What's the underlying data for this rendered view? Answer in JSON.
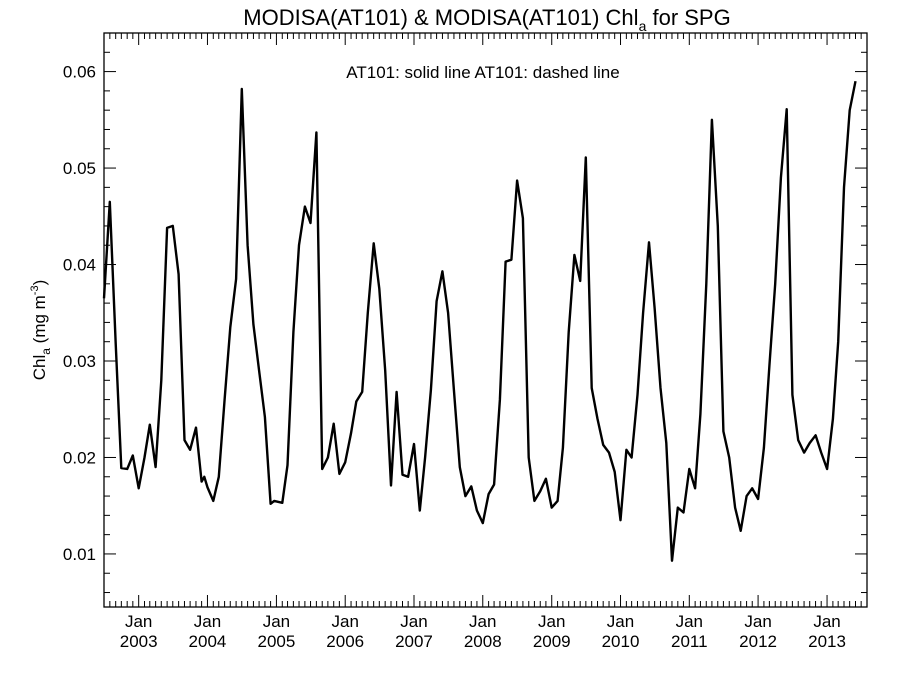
{
  "chart_data": {
    "type": "line",
    "title": "MODISA(AT101) & MODISA(AT101)  Chl",
    "title_sub": "a",
    "title_suffix": " for SPG",
    "ylabel": "Chl",
    "ylabel_sub": "a",
    "ylabel_units_pre": " (mg m",
    "ylabel_units_sup": "-3",
    "ylabel_units_post": ")",
    "annotation": "AT101: solid line   AT101: dashed line",
    "xlim": [
      "2002-07-01",
      "2013-08-01"
    ],
    "ylim": [
      0.0045,
      0.064
    ],
    "yticks": [
      0.01,
      0.02,
      0.03,
      0.04,
      0.05,
      0.06
    ],
    "ytick_labels": [
      "0.01",
      "0.02",
      "0.03",
      "0.04",
      "0.05",
      "0.06"
    ],
    "xticks": [
      "2003-01-01",
      "2004-01-01",
      "2005-01-01",
      "2006-01-01",
      "2007-01-01",
      "2008-01-01",
      "2009-01-01",
      "2010-01-01",
      "2011-01-01",
      "2012-01-01",
      "2013-01-01"
    ],
    "xtick_month_label": "Jan",
    "xtick_year_labels": [
      "2003",
      "2004",
      "2005",
      "2006",
      "2007",
      "2008",
      "2009",
      "2010",
      "2011",
      "2012",
      "2013"
    ],
    "grid": false,
    "series": [
      {
        "style": "solid",
        "color": "#000000",
        "points": [
          [
            "2002-07-01",
            0.0365
          ],
          [
            "2002-08-01",
            0.0465
          ],
          [
            "2002-09-01",
            0.0318
          ],
          [
            "2002-10-01",
            0.0189
          ],
          [
            "2002-11-01",
            0.0188
          ],
          [
            "2002-12-01",
            0.0202
          ],
          [
            "2003-01-01",
            0.0168
          ],
          [
            "2003-02-01",
            0.02
          ],
          [
            "2003-03-01",
            0.0234
          ],
          [
            "2003-04-01",
            0.019
          ],
          [
            "2003-05-01",
            0.028
          ],
          [
            "2003-06-01",
            0.0438
          ],
          [
            "2003-07-01",
            0.044
          ],
          [
            "2003-08-01",
            0.039
          ],
          [
            "2003-09-01",
            0.0218
          ],
          [
            "2003-10-01",
            0.0208
          ],
          [
            "2003-11-01",
            0.0231
          ],
          [
            "2003-12-01",
            0.0175
          ],
          [
            "2003-12-15",
            0.018
          ],
          [
            "2004-01-01",
            0.0169
          ],
          [
            "2004-02-01",
            0.0155
          ],
          [
            "2004-03-01",
            0.018
          ],
          [
            "2004-04-01",
            0.026
          ],
          [
            "2004-05-01",
            0.0335
          ],
          [
            "2004-06-01",
            0.0385
          ],
          [
            "2004-07-01",
            0.0582
          ],
          [
            "2004-08-01",
            0.042
          ],
          [
            "2004-09-01",
            0.0338
          ],
          [
            "2004-10-01",
            0.029
          ],
          [
            "2004-11-01",
            0.0242
          ],
          [
            "2004-12-01",
            0.0152
          ],
          [
            "2004-12-20",
            0.0155
          ],
          [
            "2005-02-01",
            0.0153
          ],
          [
            "2005-03-01",
            0.0192
          ],
          [
            "2005-04-01",
            0.033
          ],
          [
            "2005-05-01",
            0.042
          ],
          [
            "2005-06-01",
            0.046
          ],
          [
            "2005-07-01",
            0.0443
          ],
          [
            "2005-08-01",
            0.0537
          ],
          [
            "2005-09-01",
            0.0188
          ],
          [
            "2005-10-01",
            0.02
          ],
          [
            "2005-11-01",
            0.0235
          ],
          [
            "2005-12-01",
            0.0183
          ],
          [
            "2006-01-01",
            0.0195
          ],
          [
            "2006-02-01",
            0.0225
          ],
          [
            "2006-03-01",
            0.0258
          ],
          [
            "2006-04-01",
            0.0268
          ],
          [
            "2006-05-01",
            0.035
          ],
          [
            "2006-06-01",
            0.0422
          ],
          [
            "2006-07-01",
            0.0375
          ],
          [
            "2006-08-01",
            0.029
          ],
          [
            "2006-09-01",
            0.0171
          ],
          [
            "2006-10-01",
            0.0268
          ],
          [
            "2006-11-01",
            0.0182
          ],
          [
            "2006-12-01",
            0.018
          ],
          [
            "2007-01-01",
            0.0214
          ],
          [
            "2007-02-01",
            0.0145
          ],
          [
            "2007-03-01",
            0.02
          ],
          [
            "2007-04-01",
            0.027
          ],
          [
            "2007-05-01",
            0.0362
          ],
          [
            "2007-06-01",
            0.0393
          ],
          [
            "2007-07-01",
            0.035
          ],
          [
            "2007-08-01",
            0.027
          ],
          [
            "2007-09-01",
            0.019
          ],
          [
            "2007-10-01",
            0.016
          ],
          [
            "2007-11-01",
            0.017
          ],
          [
            "2007-12-01",
            0.0145
          ],
          [
            "2008-01-01",
            0.0132
          ],
          [
            "2008-02-01",
            0.0162
          ],
          [
            "2008-03-01",
            0.0172
          ],
          [
            "2008-04-01",
            0.026
          ],
          [
            "2008-05-01",
            0.0403
          ],
          [
            "2008-06-01",
            0.0405
          ],
          [
            "2008-07-01",
            0.0487
          ],
          [
            "2008-08-01",
            0.0448
          ],
          [
            "2008-09-01",
            0.02
          ],
          [
            "2008-10-01",
            0.0155
          ],
          [
            "2008-11-01",
            0.0165
          ],
          [
            "2008-12-01",
            0.0178
          ],
          [
            "2009-01-01",
            0.0148
          ],
          [
            "2009-02-01",
            0.0155
          ],
          [
            "2009-03-01",
            0.021
          ],
          [
            "2009-04-01",
            0.033
          ],
          [
            "2009-05-01",
            0.041
          ],
          [
            "2009-06-01",
            0.0383
          ],
          [
            "2009-07-01",
            0.0511
          ],
          [
            "2009-08-01",
            0.0272
          ],
          [
            "2009-09-01",
            0.024
          ],
          [
            "2009-10-01",
            0.0213
          ],
          [
            "2009-11-01",
            0.0205
          ],
          [
            "2009-12-01",
            0.0185
          ],
          [
            "2010-01-01",
            0.0135
          ],
          [
            "2010-02-01",
            0.0208
          ],
          [
            "2010-03-01",
            0.02
          ],
          [
            "2010-04-01",
            0.0265
          ],
          [
            "2010-05-01",
            0.035
          ],
          [
            "2010-06-01",
            0.0423
          ],
          [
            "2010-07-01",
            0.0355
          ],
          [
            "2010-08-01",
            0.0272
          ],
          [
            "2010-09-01",
            0.0215
          ],
          [
            "2010-10-01",
            0.0093
          ],
          [
            "2010-11-01",
            0.0148
          ],
          [
            "2010-12-01",
            0.0143
          ],
          [
            "2011-01-01",
            0.0188
          ],
          [
            "2011-02-01",
            0.0168
          ],
          [
            "2011-03-01",
            0.0245
          ],
          [
            "2011-04-01",
            0.038
          ],
          [
            "2011-05-01",
            0.055
          ],
          [
            "2011-06-01",
            0.044
          ],
          [
            "2011-07-01",
            0.0227
          ],
          [
            "2011-08-01",
            0.02
          ],
          [
            "2011-09-01",
            0.0148
          ],
          [
            "2011-10-01",
            0.0124
          ],
          [
            "2011-11-01",
            0.016
          ],
          [
            "2011-12-01",
            0.0168
          ],
          [
            "2012-01-01",
            0.0157
          ],
          [
            "2012-02-01",
            0.021
          ],
          [
            "2012-03-01",
            0.0295
          ],
          [
            "2012-04-01",
            0.038
          ],
          [
            "2012-05-01",
            0.049
          ],
          [
            "2012-06-01",
            0.0561
          ],
          [
            "2012-07-01",
            0.0265
          ],
          [
            "2012-08-01",
            0.0218
          ],
          [
            "2012-09-01",
            0.0205
          ],
          [
            "2012-10-01",
            0.0215
          ],
          [
            "2012-11-01",
            0.0223
          ],
          [
            "2012-12-01",
            0.0205
          ],
          [
            "2013-01-01",
            0.0188
          ],
          [
            "2013-02-01",
            0.024
          ],
          [
            "2013-03-01",
            0.032
          ],
          [
            "2013-04-01",
            0.048
          ],
          [
            "2013-05-01",
            0.056
          ],
          [
            "2013-06-01",
            0.059
          ]
        ]
      }
    ]
  }
}
